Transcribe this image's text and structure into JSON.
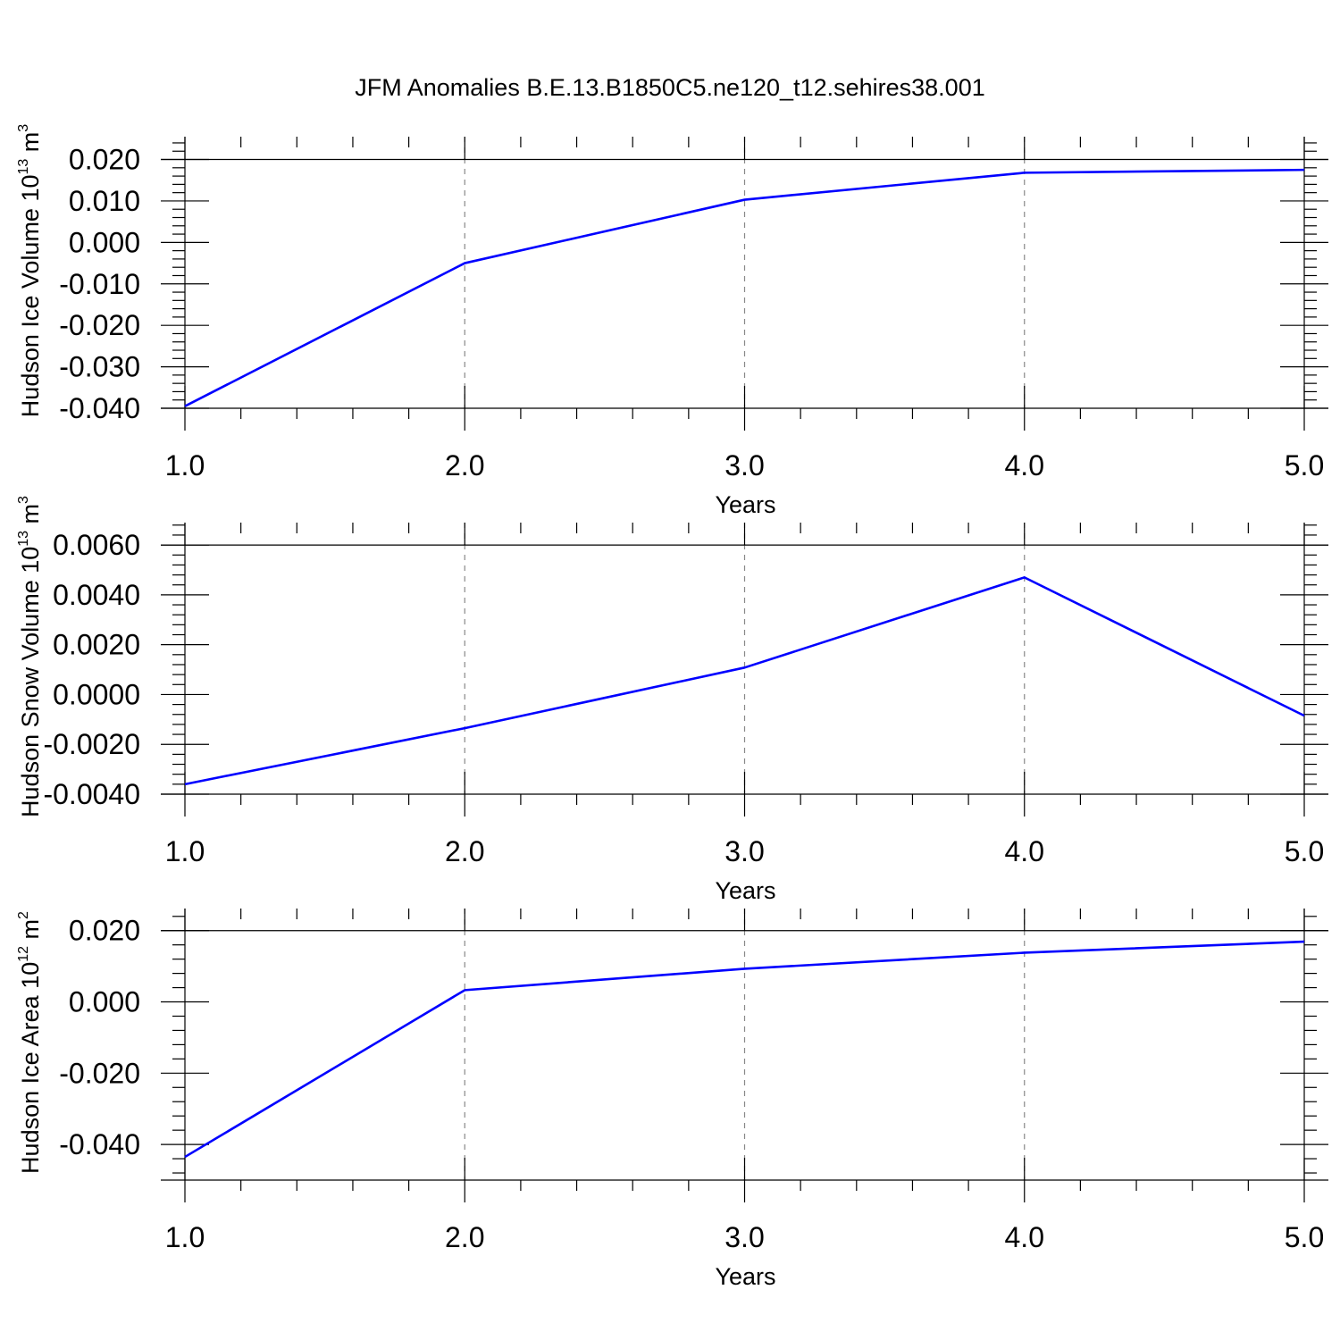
{
  "figure_title": "JFM Anomalies B.E.13.B1850C5.ne120_t12.sehires38.001",
  "colors": {
    "series": "#0000ff",
    "axes": "#000000",
    "grid": "#888888"
  },
  "chart_data": [
    {
      "type": "line",
      "title": "JFM Anomalies B.E.13.B1850C5.ne120_t12.sehires38.001",
      "xlabel": "Years",
      "ylabel": {
        "text": "Hudson Ice Volume 10",
        "sup": "13",
        "unit": " m",
        "unit_sup": "3"
      },
      "x": [
        1.0,
        2.0,
        3.0,
        4.0,
        5.0
      ],
      "series": [
        {
          "name": "Hudson Ice Volume",
          "values": [
            -0.0395,
            -0.005,
            0.0103,
            0.0168,
            0.0175
          ]
        }
      ],
      "xlim": [
        1.0,
        5.0
      ],
      "ylim": [
        -0.04,
        0.0255
      ],
      "xticks": [
        1.0,
        2.0,
        3.0,
        4.0,
        5.0
      ],
      "xtick_labels": [
        "1.0",
        "2.0",
        "3.0",
        "4.0",
        "5.0"
      ],
      "yticks": [
        -0.04,
        -0.03,
        -0.02,
        -0.01,
        0.0,
        0.01,
        0.02
      ],
      "ytick_labels": [
        "-0.040",
        "-0.030",
        "-0.020",
        "-0.010",
        "0.000",
        "0.010",
        "0.020"
      ],
      "reference_line": 0.02,
      "grid": "x-dashed"
    },
    {
      "type": "line",
      "xlabel": "Years",
      "ylabel": {
        "text": "Hudson Snow Volume 10",
        "sup": "13",
        "unit": " m",
        "unit_sup": "3"
      },
      "x": [
        1.0,
        2.0,
        3.0,
        4.0,
        5.0
      ],
      "series": [
        {
          "name": "Hudson Snow Volume",
          "values": [
            -0.0036,
            -0.00135,
            0.00108,
            0.0047,
            -0.00085
          ]
        }
      ],
      "xlim": [
        1.0,
        5.0
      ],
      "ylim": [
        -0.004,
        0.0069
      ],
      "xticks": [
        1.0,
        2.0,
        3.0,
        4.0,
        5.0
      ],
      "xtick_labels": [
        "1.0",
        "2.0",
        "3.0",
        "4.0",
        "5.0"
      ],
      "yticks": [
        -0.004,
        -0.002,
        0.0,
        0.002,
        0.004,
        0.006
      ],
      "ytick_labels": [
        "-0.0040",
        "-0.0020",
        "0.0000",
        "0.0020",
        "0.0040",
        "0.0060"
      ],
      "reference_line": 0.006,
      "grid": "x-dashed"
    },
    {
      "type": "line",
      "xlabel": "Years",
      "ylabel": {
        "text": "Hudson Ice Area 10",
        "sup": "12",
        "unit": " m",
        "unit_sup": "2"
      },
      "x": [
        1.0,
        2.0,
        3.0,
        4.0,
        5.0
      ],
      "series": [
        {
          "name": "Hudson Ice Area",
          "values": [
            -0.0435,
            0.0033,
            0.0093,
            0.0138,
            0.0169
          ]
        }
      ],
      "xlim": [
        1.0,
        5.0
      ],
      "ylim": [
        -0.05,
        0.0262
      ],
      "xticks": [
        1.0,
        2.0,
        3.0,
        4.0,
        5.0
      ],
      "xtick_labels": [
        "1.0",
        "2.0",
        "3.0",
        "4.0",
        "5.0"
      ],
      "yticks": [
        -0.04,
        -0.02,
        0.0,
        0.02
      ],
      "ytick_labels": [
        "-0.040",
        "-0.020",
        "0.000",
        "0.020"
      ],
      "reference_line": 0.02,
      "grid": "x-dashed"
    }
  ]
}
